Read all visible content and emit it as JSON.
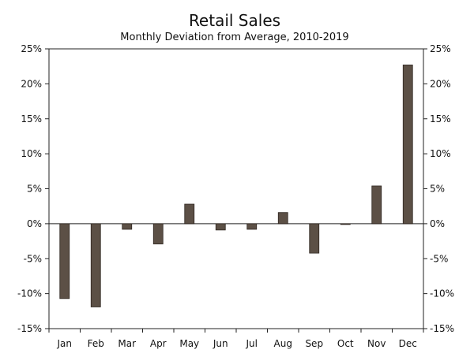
{
  "chart_data": {
    "type": "bar",
    "title": "Retail Sales",
    "subtitle": "Monthly Deviation from Average, 2010-2019",
    "xlabel": "",
    "ylabel": "",
    "categories": [
      "Jan",
      "Feb",
      "Mar",
      "Apr",
      "May",
      "Jun",
      "Jul",
      "Aug",
      "Sep",
      "Oct",
      "Nov",
      "Dec"
    ],
    "values": [
      -10.7,
      -11.9,
      -0.8,
      -2.9,
      2.8,
      -0.9,
      -0.8,
      1.6,
      -4.2,
      -0.1,
      5.4,
      22.7
    ],
    "ylim": [
      -15,
      25
    ],
    "yticks": [
      -15,
      -10,
      -5,
      0,
      5,
      10,
      15,
      20,
      25
    ],
    "ytick_labels": [
      "-15%",
      "-10%",
      "-5%",
      "0%",
      "5%",
      "10%",
      "15%",
      "20%",
      "25%"
    ],
    "dual_y_axis": true,
    "grid": false,
    "bar_color": "#5c5046"
  }
}
